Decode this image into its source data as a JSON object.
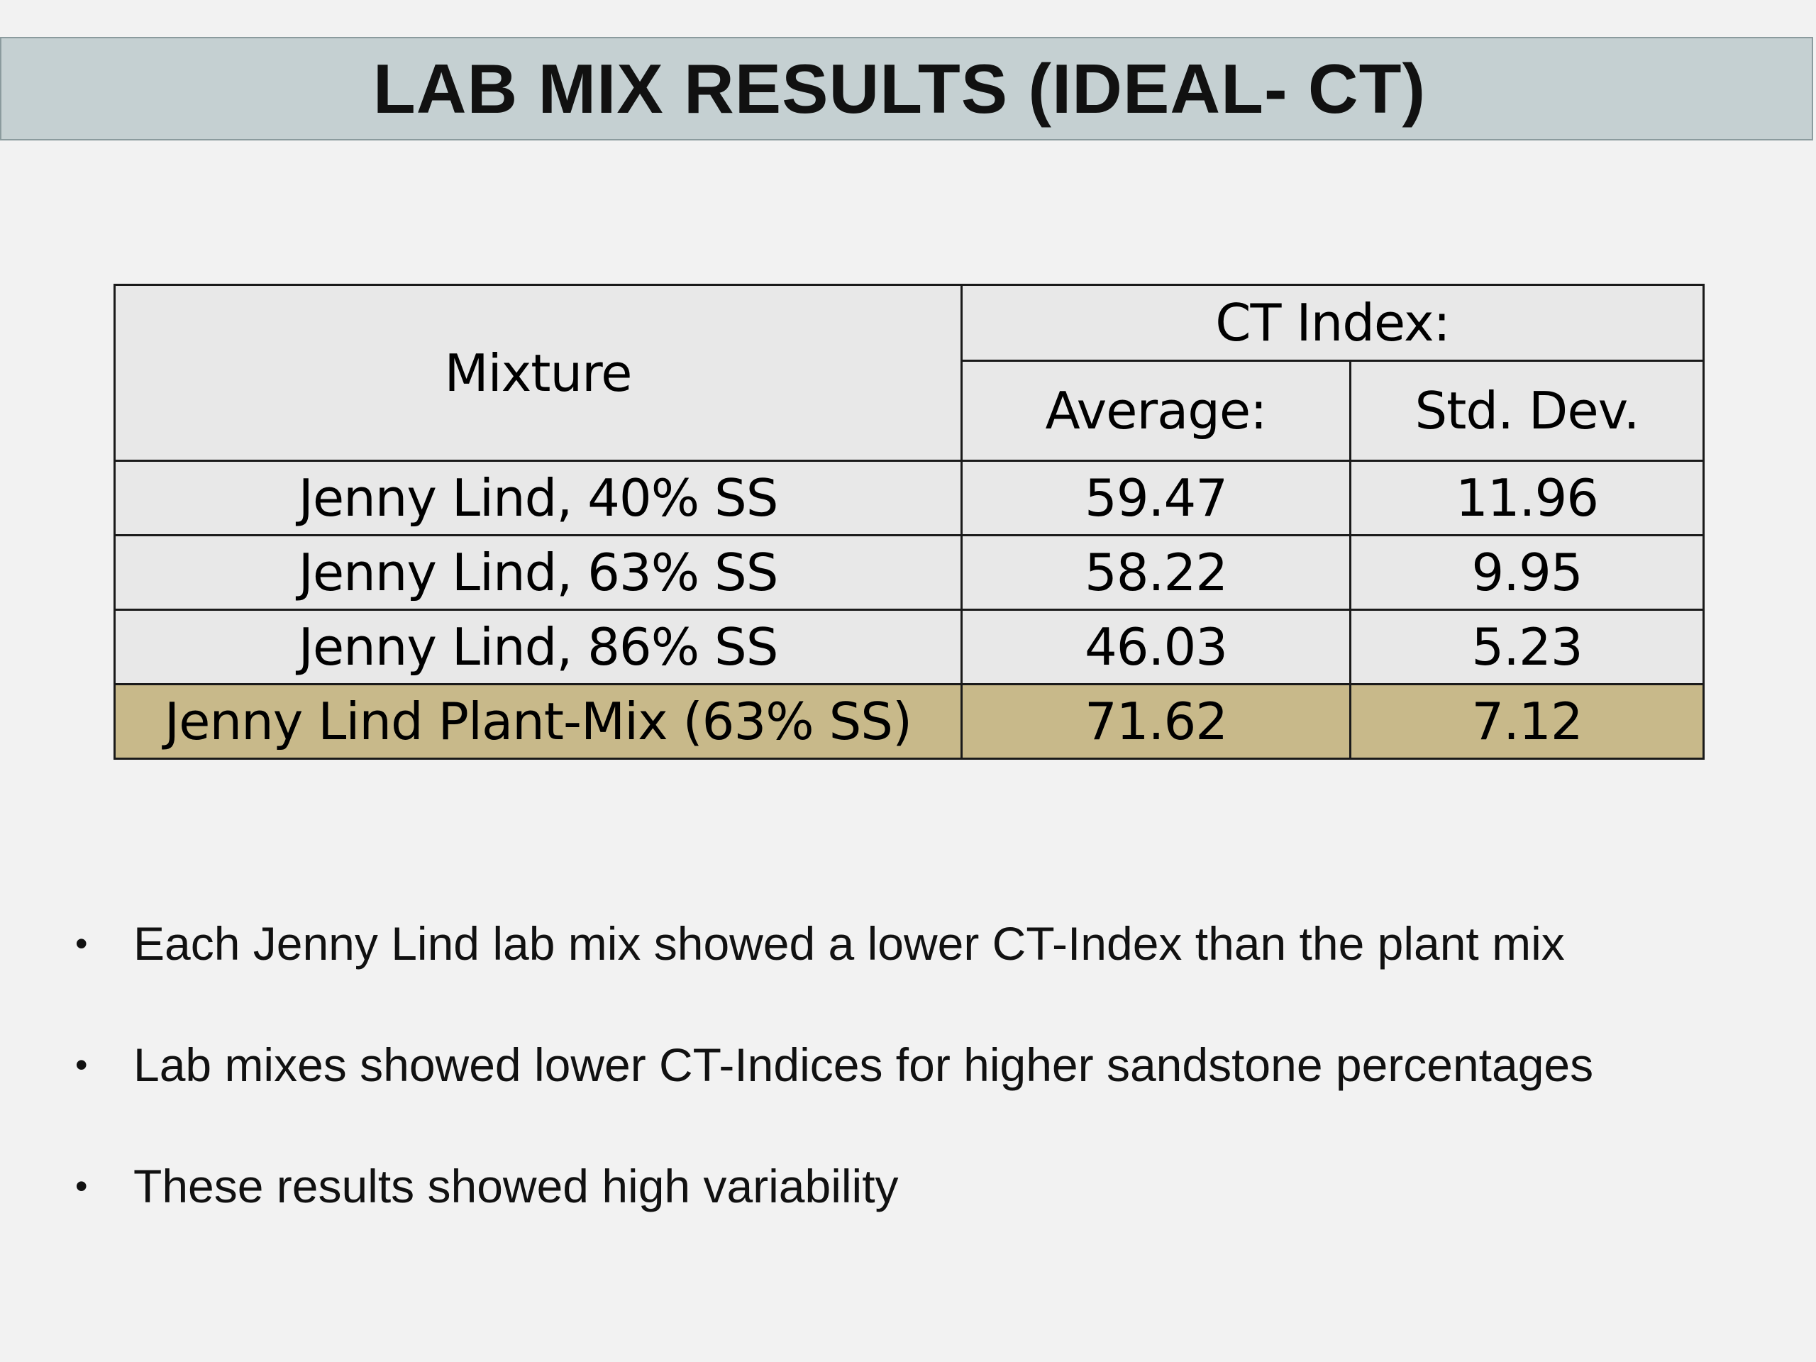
{
  "slide": {
    "title": "LAB MIX RESULTS (IDEAL- CT)"
  },
  "table": {
    "header": {
      "mixture": "Mixture",
      "group": "CT Index:",
      "average": "Average:",
      "std_dev": "Std. Dev."
    },
    "rows": [
      {
        "mixture": "Jenny Lind, 40% SS",
        "average": "59.47",
        "std_dev": "11.96"
      },
      {
        "mixture": "Jenny Lind, 63% SS",
        "average": "58.22",
        "std_dev": "9.95"
      },
      {
        "mixture": "Jenny Lind, 86% SS",
        "average": "46.03",
        "std_dev": "5.23"
      },
      {
        "mixture": "Jenny Lind Plant-Mix (63% SS)",
        "average": "71.62",
        "std_dev": "7.12"
      }
    ],
    "highlight_color": "#c8b98a"
  },
  "bullets": [
    "Each Jenny Lind lab mix showed a lower CT-Index than the plant mix",
    "Lab mixes showed lower CT-Indices for higher sandstone percentages",
    "These results showed high variability"
  ],
  "bullet_glyph": "•"
}
